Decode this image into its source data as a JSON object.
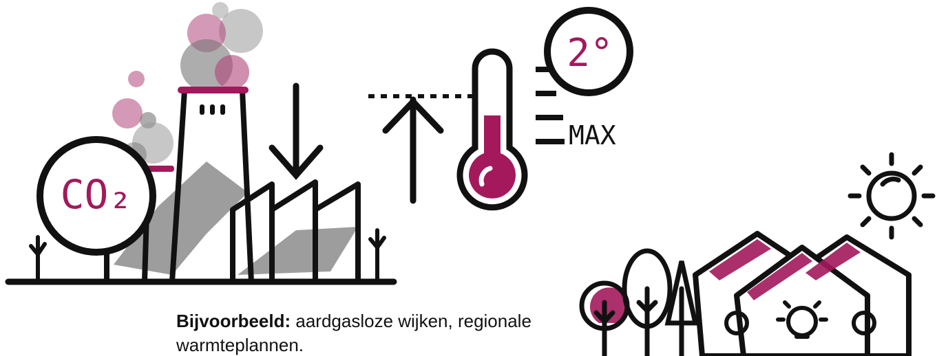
{
  "illustration_labels": {
    "co2": "CO₂",
    "temperature": "2°",
    "max": "MAX"
  },
  "caption": {
    "lead": "Bijvoorbeeld:",
    "text": "aardgasloze wijken, regionale warmteplannen."
  }
}
